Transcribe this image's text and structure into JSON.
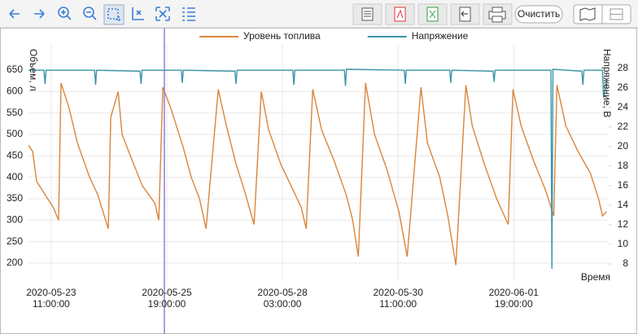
{
  "toolbar": {
    "clear_button": "Очистить"
  },
  "chart_data": {
    "type": "line",
    "legend_position": "top",
    "grid": true,
    "y_label": "Объем, л",
    "y2_label": "Напряжение, В",
    "x_label": "Время",
    "xlim": [
      "2020-05-23 00:00",
      "2020-06-03 17:00"
    ],
    "xticks": [
      "2020-05-23 11:00:00",
      "2020-05-25 19:00:00",
      "2020-05-28 03:00:00",
      "2020-05-30 11:00:00",
      "2020-06-01 19:00:00"
    ],
    "ylim": [
      158,
      709
    ],
    "yticks": [
      200,
      250,
      300,
      350,
      400,
      450,
      500,
      550,
      600,
      650
    ],
    "y2lim": [
      6.25,
      30.4
    ],
    "y2ticks": [
      8,
      10,
      12,
      14,
      16,
      18,
      20,
      22,
      24,
      26,
      28
    ],
    "series": [
      {
        "name": "Уровень топлива",
        "color": "#d9853b",
        "x": [
          "2020-05-23 00:00",
          "2020-05-23 02:00",
          "2020-05-23 04:00",
          "2020-05-23 08:00",
          "2020-05-23 12:00",
          "2020-05-23 14:35",
          "2020-05-23 15:45",
          "2020-05-23 19:45",
          "2020-05-23 23:40",
          "2020-05-24 05:35",
          "2020-05-24 09:30",
          "2020-05-24 14:40",
          "2020-05-24 15:50",
          "2020-05-24 19:25",
          "2020-05-24 21:20",
          "2020-05-25 01:20",
          "2020-05-25 07:10",
          "2020-05-25 13:10",
          "2020-05-25 15:05",
          "2020-05-25 17:05",
          "2020-05-25 21:00",
          "2020-05-26 02:55",
          "2020-05-26 06:50",
          "2020-05-26 10:50",
          "2020-05-26 14:00",
          "2020-05-26 19:55",
          "2020-05-26 23:50",
          "2020-05-27 04:35",
          "2020-05-27 08:30",
          "2020-05-27 13:15",
          "2020-05-27 16:45",
          "2020-05-27 20:20",
          "2020-05-28 02:15",
          "2020-05-28 08:10",
          "2020-05-28 12:05",
          "2020-05-28 14:30",
          "2020-05-28 17:40",
          "2020-05-28 22:00",
          "2020-05-29 03:55",
          "2020-05-29 09:50",
          "2020-05-29 13:00",
          "2020-05-29 15:45",
          "2020-05-29 19:15",
          "2020-05-29 23:35",
          "2020-05-30 05:30",
          "2020-05-30 11:25",
          "2020-05-30 15:25",
          "2020-05-30 22:05",
          "2020-05-31 01:15",
          "2020-05-31 07:10",
          "2020-05-31 11:05",
          "2020-05-31 15:00",
          "2020-05-31 19:50",
          "2020-05-31 22:55",
          "2020-06-01 04:50",
          "2020-06-01 10:45",
          "2020-06-01 16:20",
          "2020-06-01 18:40",
          "2020-06-01 22:35",
          "2020-06-02 04:30",
          "2020-06-02 10:25",
          "2020-06-02 14:25",
          "2020-06-02 15:55",
          "2020-06-02 20:15",
          "2020-06-03 02:10",
          "2020-06-03 08:05",
          "2020-06-03 12:05",
          "2020-06-03 14:00",
          "2020-06-03 16:00"
        ],
        "values": [
          475,
          460,
          390,
          360,
          330,
          300,
          620,
          560,
          480,
          400,
          360,
          280,
          540,
          600,
          500,
          450,
          380,
          340,
          300,
          610,
          560,
          470,
          400,
          350,
          280,
          605,
          520,
          430,
          370,
          290,
          600,
          510,
          430,
          370,
          330,
          280,
          605,
          510,
          440,
          360,
          300,
          215,
          620,
          500,
          420,
          320,
          215,
          610,
          480,
          400,
          310,
          195,
          615,
          520,
          430,
          350,
          290,
          605,
          520,
          440,
          370,
          310,
          615,
          520,
          460,
          410,
          350,
          310,
          320
        ]
      },
      {
        "name": "Напряжение",
        "color": "#3a95a8",
        "axis": "y2",
        "x": [
          "2020-05-23 00:00",
          "2020-05-23 07:30",
          "2020-05-23 08:00",
          "2020-05-23 08:30",
          "2020-05-24 08:00",
          "2020-05-24 08:30",
          "2020-05-24 09:00",
          "2020-05-25 06:00",
          "2020-05-25 06:30",
          "2020-05-25 07:00",
          "2020-05-26 02:00",
          "2020-05-26 02:30",
          "2020-05-26 03:00",
          "2020-05-27 04:00",
          "2020-05-27 04:30",
          "2020-05-27 05:00",
          "2020-05-28 08:00",
          "2020-05-28 08:30",
          "2020-05-28 09:00",
          "2020-05-29 09:00",
          "2020-05-29 09:30",
          "2020-05-29 10:00",
          "2020-05-30 14:00",
          "2020-05-30 14:30",
          "2020-05-30 15:00",
          "2020-05-31 12:00",
          "2020-05-31 12:30",
          "2020-05-31 13:00",
          "2020-06-01 09:00",
          "2020-06-01 09:30",
          "2020-06-01 10:00",
          "2020-06-02 13:00",
          "2020-06-02 13:30",
          "2020-06-02 14:00",
          "2020-06-03 04:00",
          "2020-06-03 04:30",
          "2020-06-03 05:00",
          "2020-06-03 14:00",
          "2020-06-03 14:30",
          "2020-06-03 16:00"
        ],
        "values": [
          27.8,
          27.8,
          26.4,
          27.8,
          27.8,
          26.3,
          27.8,
          27.7,
          26.4,
          27.8,
          27.8,
          26.5,
          27.8,
          27.7,
          26.4,
          27.8,
          27.8,
          26.3,
          27.8,
          27.8,
          26.2,
          27.9,
          27.8,
          26.4,
          27.8,
          27.8,
          26.5,
          27.8,
          27.7,
          26.6,
          27.8,
          27.8,
          7.5,
          27.9,
          27.7,
          26.3,
          27.8,
          27.8,
          25.0,
          26.6
        ]
      }
    ]
  }
}
